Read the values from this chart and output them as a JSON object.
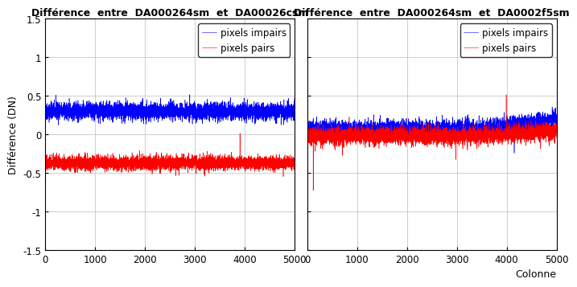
{
  "title1": "Différence  entre  DA000264sm  et  DA00026csm",
  "title2": "Différence  entre  DA000264sm  et  DA0002f5sm",
  "ylabel": "Différence (DN)",
  "xlabel2": "Colonne",
  "legend_odd": "pixels impairs",
  "legend_even": "pixels pairs",
  "xlim": [
    0,
    5000
  ],
  "ylim": [
    -1.5,
    1.5
  ],
  "yticks": [
    -1.5,
    -1.0,
    -0.5,
    0,
    0.5,
    1.0,
    1.5
  ],
  "xticks": [
    0,
    1000,
    2000,
    3000,
    4000,
    5000
  ],
  "n_points": 5000,
  "blue_color": "#0000FF",
  "red_color": "#FF0000",
  "plot1_blue_mean": 0.3,
  "plot1_blue_noise": 0.055,
  "plot1_red_mean": -0.37,
  "plot1_red_noise": 0.045,
  "plot2_blue_mean": 0.07,
  "plot2_blue_noise": 0.055,
  "plot2_red_mean": -0.02,
  "plot2_red_noise": 0.055,
  "title_fontsize": 9,
  "label_fontsize": 9,
  "tick_fontsize": 8.5,
  "legend_fontsize": 8.5,
  "background_color": "#FFFFFF",
  "grid_color": "#BBBBBB",
  "linewidth": 0.4
}
